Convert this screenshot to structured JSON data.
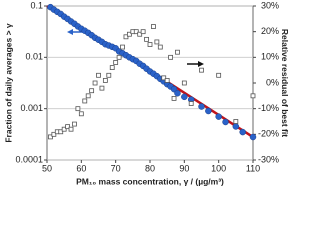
{
  "chart_data": {
    "type": "scatter",
    "ylabel": "Fraction of daily averages > γ",
    "y2label": "Relative residual of best fit",
    "xlabel": "PM₁₀ mass concentration, γ / (µg/m³)",
    "xlim": [
      50,
      110
    ],
    "xticks": [
      50,
      60,
      70,
      80,
      90,
      100,
      110
    ],
    "ylim": [
      0.0001,
      0.1
    ],
    "yticks": [
      0.0001,
      0.001,
      0.01,
      0.1
    ],
    "ylog": true,
    "y2lim": [
      -30,
      30
    ],
    "y2ticks": [
      {
        "value": -30,
        "label": "-30%"
      },
      {
        "value": -20,
        "label": "-20%"
      },
      {
        "value": -10,
        "label": "-10%"
      },
      {
        "value": 0,
        "label": "0%"
      },
      {
        "value": 10,
        "label": "10%"
      },
      {
        "value": 20,
        "label": "20%"
      },
      {
        "value": 30,
        "label": "30%"
      }
    ],
    "grid": true,
    "series": [
      {
        "mode": "line",
        "color": "#c0141c",
        "x": [
          50,
          80,
          110
        ],
        "values": [
          0.1,
          0.0055,
          0.00028
        ]
      },
      {
        "mode": "marker",
        "marker": "circle",
        "color": "#2a62c9",
        "x": [
          51,
          52,
          53,
          54,
          55,
          56,
          57,
          58,
          59,
          60,
          61,
          62,
          63,
          64,
          65,
          66,
          67,
          68,
          69,
          70,
          71,
          72,
          73,
          74,
          75,
          76,
          77,
          78,
          79,
          80,
          81,
          82,
          83,
          84,
          85,
          86,
          87,
          88,
          90,
          92,
          95,
          97,
          100,
          102,
          105,
          107,
          110
        ],
        "values": [
          0.095,
          0.085,
          0.077,
          0.07,
          0.062,
          0.056,
          0.05,
          0.045,
          0.04,
          0.036,
          0.033,
          0.03,
          0.027,
          0.024,
          0.022,
          0.02,
          0.018,
          0.017,
          0.016,
          0.015,
          0.013,
          0.012,
          0.011,
          0.01,
          0.0092,
          0.0085,
          0.0075,
          0.0068,
          0.006,
          0.0053,
          0.0048,
          0.0043,
          0.0038,
          0.0034,
          0.003,
          0.0027,
          0.0024,
          0.002,
          0.0017,
          0.0015,
          0.0011,
          0.0009,
          0.0007,
          0.00055,
          0.00045,
          0.00035,
          0.00028
        ]
      },
      {
        "mode": "marker",
        "marker": "square",
        "color": "#555555",
        "axis": "y2",
        "x": [
          51,
          52,
          53,
          54,
          55,
          56,
          57,
          58,
          59,
          60,
          61,
          62,
          63,
          64,
          65,
          66,
          67,
          68,
          69,
          70,
          71,
          72,
          73,
          74,
          75,
          76,
          77,
          78,
          79,
          80,
          81,
          82,
          83,
          84,
          85,
          86,
          87,
          88,
          90,
          92,
          95,
          100,
          105,
          110
        ],
        "values": [
          -21,
          -20,
          -19,
          -19,
          -18,
          -17,
          -18,
          -16,
          -10,
          -12,
          -7,
          -5,
          -3,
          0,
          3,
          -2,
          1,
          3,
          6,
          8,
          10,
          14,
          18,
          19,
          20,
          20,
          19,
          20,
          17,
          15,
          22,
          16,
          14,
          2,
          1,
          10,
          -6,
          12,
          0,
          -8,
          5,
          3,
          -15,
          -5
        ]
      }
    ]
  }
}
